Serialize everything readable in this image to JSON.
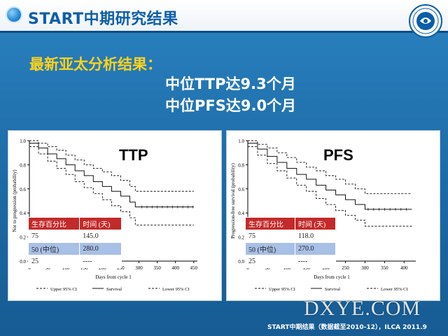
{
  "header": {
    "title": "START中期研究结果"
  },
  "subtitle": "最新亚太分析结果：",
  "line2": "中位TTP达9.3个月",
  "line3": "中位PFS达9.0个月",
  "footer": "START中期结果（数据截至2010-12），ILCA 2011.9",
  "watermark": "DXYE.COM",
  "panels": [
    {
      "label": "TTP",
      "ylabel": "Not to progression (probability)",
      "xlabel": "Days from cycle 1",
      "table": {
        "headers": [
          "生存百分比",
          "时间 (天)"
        ],
        "rows": [
          [
            "75",
            "145.0"
          ],
          [
            "50 (中位)",
            "280.0"
          ],
          [
            "25",
            "----"
          ]
        ]
      },
      "legend": [
        "Upper 95% CI",
        "Survival",
        "Lower 95% CI"
      ]
    },
    {
      "label": "PFS",
      "ylabel": "Progression-free survival (probability)",
      "xlabel": "Days from cycle 1",
      "table": {
        "headers": [
          "生存百分比",
          "时间 (天)"
        ],
        "rows": [
          [
            "75",
            "118.0"
          ],
          [
            "50 (中位)",
            "270.0"
          ],
          [
            "25",
            "----"
          ]
        ]
      },
      "legend": [
        "Upper 95% CI",
        "Survival",
        "Lower 95% CI"
      ]
    }
  ],
  "chart_data": [
    {
      "type": "line",
      "title": "TTP",
      "xlabel": "Days from cycle 1",
      "ylabel": "Not to progression (probability)",
      "xlim": [
        0,
        460
      ],
      "ylim": [
        0,
        1.0
      ],
      "x_ticks": [
        0,
        50,
        100,
        150,
        200,
        250,
        300,
        350,
        400,
        450
      ],
      "y_ticks": [
        0.0,
        0.2,
        0.4,
        0.6,
        0.8,
        1.0
      ],
      "series": [
        {
          "name": "Upper 95% CI",
          "style": "dashed",
          "x": [
            0,
            25,
            50,
            75,
            100,
            125,
            150,
            175,
            200,
            225,
            250,
            275,
            290,
            300,
            350,
            400,
            450
          ],
          "y": [
            1.0,
            0.98,
            0.95,
            0.92,
            0.88,
            0.84,
            0.8,
            0.77,
            0.74,
            0.71,
            0.67,
            0.62,
            0.58,
            0.58,
            0.58,
            0.58,
            0.58
          ]
        },
        {
          "name": "Survival",
          "style": "solid",
          "x": [
            0,
            25,
            50,
            75,
            100,
            125,
            150,
            175,
            200,
            225,
            250,
            275,
            290,
            300,
            350,
            400,
            450
          ],
          "y": [
            0.98,
            0.94,
            0.89,
            0.85,
            0.8,
            0.75,
            0.71,
            0.66,
            0.62,
            0.58,
            0.54,
            0.49,
            0.45,
            0.45,
            0.45,
            0.45,
            0.45
          ]
        },
        {
          "name": "Lower 95% CI",
          "style": "dashed",
          "x": [
            0,
            25,
            50,
            75,
            100,
            125,
            150,
            175,
            200,
            225,
            250,
            275,
            290,
            300,
            350,
            400,
            450
          ],
          "y": [
            0.95,
            0.89,
            0.83,
            0.77,
            0.72,
            0.66,
            0.61,
            0.56,
            0.51,
            0.46,
            0.41,
            0.36,
            0.3,
            0.3,
            0.3,
            0.3,
            0.3
          ]
        }
      ]
    },
    {
      "type": "line",
      "title": "PFS",
      "xlabel": "Days from cycle 1",
      "ylabel": "Progression-free survival (probability)",
      "xlim": [
        0,
        430
      ],
      "ylim": [
        0,
        1.0
      ],
      "x_ticks": [
        0,
        50,
        100,
        150,
        200,
        250,
        300,
        350,
        400
      ],
      "y_ticks": [
        0.0,
        0.2,
        0.4,
        0.6,
        0.8,
        1.0
      ],
      "series": [
        {
          "name": "Upper 95% CI",
          "style": "dashed",
          "x": [
            0,
            25,
            50,
            75,
            100,
            125,
            150,
            175,
            200,
            225,
            250,
            275,
            300,
            350,
            400,
            420
          ],
          "y": [
            1.0,
            0.97,
            0.94,
            0.9,
            0.86,
            0.82,
            0.78,
            0.75,
            0.71,
            0.68,
            0.64,
            0.6,
            0.56,
            0.56,
            0.56,
            0.56
          ]
        },
        {
          "name": "Survival",
          "style": "solid",
          "x": [
            0,
            25,
            50,
            75,
            100,
            125,
            150,
            175,
            200,
            225,
            250,
            275,
            300,
            350,
            400,
            420
          ],
          "y": [
            0.98,
            0.93,
            0.87,
            0.82,
            0.77,
            0.72,
            0.68,
            0.63,
            0.59,
            0.55,
            0.51,
            0.47,
            0.43,
            0.43,
            0.43,
            0.43
          ]
        },
        {
          "name": "Lower 95% CI",
          "style": "dashed",
          "x": [
            0,
            25,
            50,
            75,
            100,
            125,
            150,
            175,
            200,
            225,
            250,
            275,
            300,
            350,
            400,
            420
          ],
          "y": [
            0.95,
            0.88,
            0.81,
            0.75,
            0.69,
            0.63,
            0.58,
            0.52,
            0.47,
            0.42,
            0.38,
            0.34,
            0.29,
            0.29,
            0.29,
            0.29
          ]
        }
      ]
    }
  ]
}
